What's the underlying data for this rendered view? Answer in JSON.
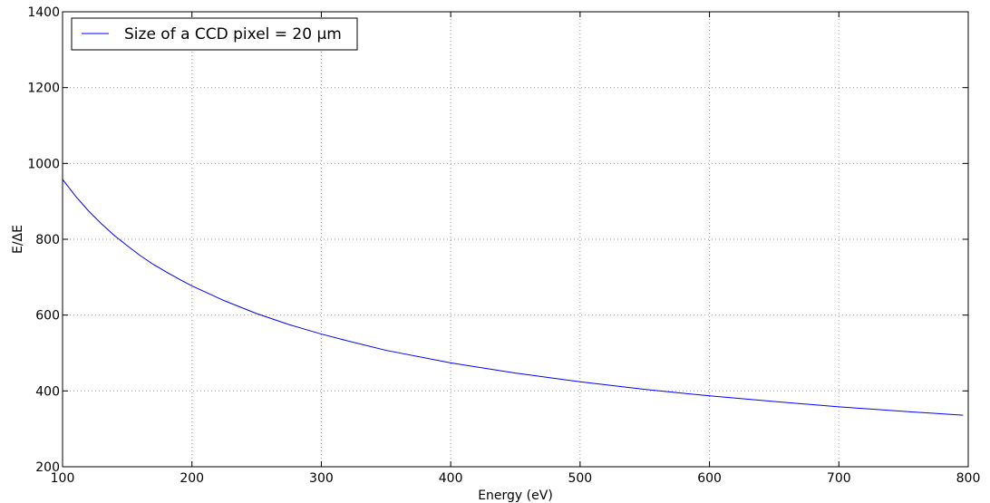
{
  "chart_data": {
    "type": "line",
    "title": "",
    "xlabel": "Energy (eV)",
    "ylabel": "E/ΔE",
    "xlim": [
      100,
      800
    ],
    "ylim": [
      200,
      1400
    ],
    "x_ticks": [
      100,
      200,
      300,
      400,
      500,
      600,
      700,
      800
    ],
    "y_ticks": [
      200,
      400,
      600,
      800,
      1000,
      1200,
      1400
    ],
    "grid": true,
    "legend_position": "top-left",
    "series": [
      {
        "name": "Size of a CCD pixel = 20 μm",
        "color": "#0000ff",
        "x": [
          100,
          110,
          120,
          130,
          140,
          150,
          160,
          170,
          180,
          190,
          200,
          225,
          250,
          275,
          285,
          300,
          318,
          350,
          400,
          450,
          500,
          550,
          600,
          650,
          700,
          750,
          796
        ],
        "y": [
          958,
          914,
          875,
          841,
          810,
          783,
          757,
          734,
          714,
          695,
          677,
          638,
          604,
          575,
          565,
          550,
          534,
          507,
          474,
          447,
          424,
          404,
          387,
          372,
          358,
          346,
          336
        ]
      }
    ]
  }
}
